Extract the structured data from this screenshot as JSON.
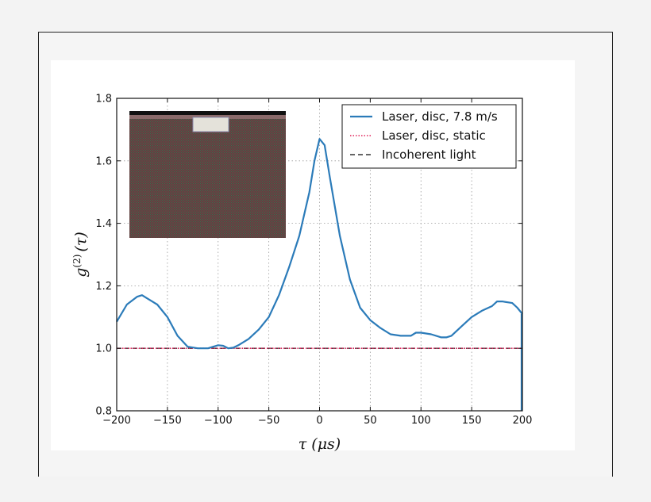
{
  "colors": {
    "background": "#f3f3f3",
    "figure": "#ffffff",
    "series_moving": "#2b7bb9",
    "series_static": "#e0225a",
    "series_incoherent": "#333333",
    "inset_pattern": "#5a4540",
    "inset_top_bar": "#111111",
    "inset_sample": "#e4e2da"
  },
  "chart_data": {
    "type": "line",
    "title": "",
    "xlabel": "τ (μs)",
    "ylabel": "g(2) (τ)",
    "ylabel_base": "g",
    "ylabel_sup": "(2)",
    "ylabel_arg": "(τ)",
    "xlim": [
      -200,
      200
    ],
    "ylim": [
      0.8,
      1.8
    ],
    "x_ticks": [
      -200,
      -150,
      -100,
      -50,
      0,
      50,
      100,
      150,
      200
    ],
    "x_tick_labels": [
      "−200",
      "−150",
      "−100",
      "−50",
      "0",
      "50",
      "100",
      "150",
      "200"
    ],
    "y_ticks": [
      0.8,
      1.0,
      1.2,
      1.4,
      1.6,
      1.8
    ],
    "y_tick_labels": [
      "0.8",
      "1.0",
      "1.2",
      "1.4",
      "1.6",
      "1.8"
    ],
    "grid": true,
    "legend_position": "top-right",
    "series": [
      {
        "name": "Laser, disc, 7.8 m/s",
        "style": "solid",
        "x": [
          -200,
          -190,
          -180,
          -175,
          -170,
          -160,
          -150,
          -140,
          -130,
          -120,
          -110,
          -100,
          -95,
          -90,
          -85,
          -80,
          -70,
          -60,
          -50,
          -40,
          -30,
          -20,
          -10,
          -5,
          0,
          5,
          10,
          20,
          30,
          40,
          50,
          60,
          70,
          80,
          90,
          95,
          100,
          110,
          120,
          125,
          130,
          140,
          150,
          160,
          170,
          175,
          180,
          190,
          195,
          200
        ],
        "y": [
          1.085,
          1.14,
          1.165,
          1.17,
          1.16,
          1.14,
          1.1,
          1.04,
          1.005,
          1.0,
          1.0,
          1.01,
          1.008,
          1.0,
          1.002,
          1.01,
          1.03,
          1.06,
          1.1,
          1.17,
          1.26,
          1.36,
          1.5,
          1.6,
          1.67,
          1.65,
          1.55,
          1.36,
          1.22,
          1.13,
          1.09,
          1.065,
          1.045,
          1.04,
          1.04,
          1.05,
          1.05,
          1.045,
          1.035,
          1.035,
          1.04,
          1.07,
          1.1,
          1.12,
          1.135,
          1.15,
          1.15,
          1.145,
          1.13,
          1.11
        ]
      },
      {
        "name": "Laser, disc, static",
        "style": "dotted",
        "x": [
          -200,
          200
        ],
        "y": [
          1.0,
          1.0
        ]
      },
      {
        "name": "Incoherent light",
        "style": "dashed",
        "x": [
          -200,
          200
        ],
        "y": [
          1.0,
          1.0
        ]
      }
    ]
  }
}
